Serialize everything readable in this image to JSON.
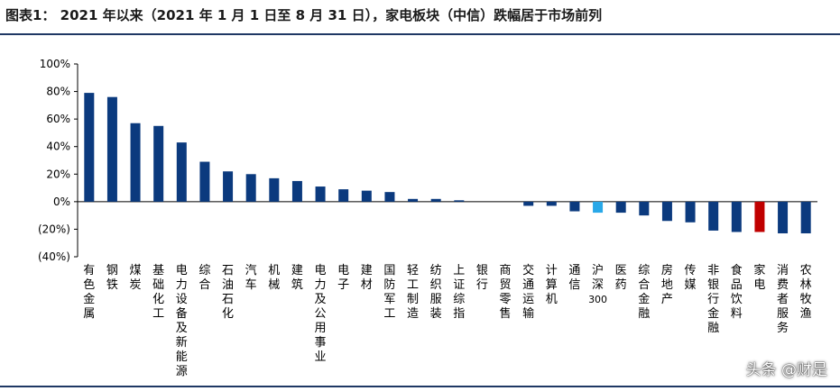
{
  "header": {
    "title": "图表1：  2021 年以来（2021 年 1 月 1 日至 8 月 31 日），家电板块（中信）跌幅居于市场前列"
  },
  "watermark": "头条 @财是",
  "colors": {
    "bar_default": "#0b3a7e",
    "bar_highlight_index": "#29a8e8",
    "bar_highlight_sector": "#c00000",
    "rule": "#1f3864"
  },
  "chart_data": {
    "type": "bar",
    "title": "",
    "xlabel": "",
    "ylabel": "",
    "ylim": [
      -40,
      100
    ],
    "grid": false,
    "legend": "none",
    "y_ticks": [
      "100%",
      "80%",
      "60%",
      "40%",
      "20%",
      "0%",
      "(20%)",
      "(40%)"
    ],
    "y_tick_values": [
      100,
      80,
      60,
      40,
      20,
      0,
      -20,
      -40
    ],
    "categories": [
      "有色金属",
      "钢铁",
      "煤炭",
      "基础化工",
      "电力设备及新能源",
      "综合",
      "石油石化",
      "汽车",
      "机械",
      "建筑",
      "电力及公用事业",
      "电子",
      "建材",
      "国防军工",
      "轻工制造",
      "纺织服装",
      "上证综指",
      "银行",
      "商贸零售",
      "交通运输",
      "计算机",
      "通信",
      "沪深300",
      "医药",
      "综合金融",
      "房地产",
      "传媒",
      "非银行金融",
      "食品饮料",
      "家电",
      "消费者服务",
      "农林牧渔"
    ],
    "values": [
      79,
      76,
      57,
      55,
      43,
      29,
      22,
      20,
      17,
      15,
      11,
      9,
      8,
      7,
      2,
      2,
      1,
      0,
      0,
      -3,
      -3,
      -7,
      -8,
      -8,
      -10,
      -14,
      -15,
      -21,
      -22,
      -22,
      -23,
      -23
    ],
    "highlight": {
      "沪深300": "index",
      "家电": "sector"
    }
  }
}
